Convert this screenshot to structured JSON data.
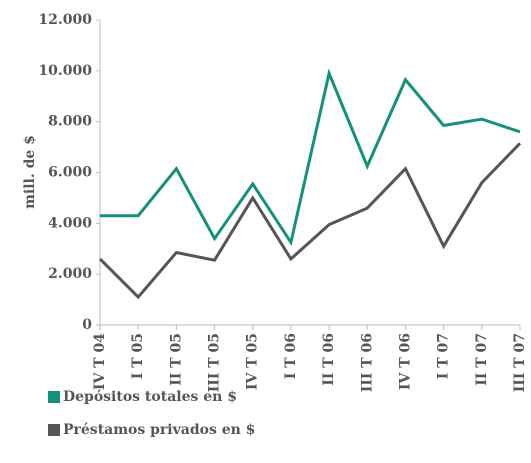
{
  "chart_data": {
    "type": "line",
    "y_label": "mill. de $",
    "categories": [
      "IV T 04",
      "I T 05",
      "II T 05",
      "III T 05",
      "IV T 05",
      "I T 06",
      "II T 06",
      "III T 06",
      "IV T 06",
      "I T 07",
      "II T 07",
      "III T 07"
    ],
    "series": [
      {
        "name": "Depósitos totales en $",
        "color": "#14917d",
        "values": [
          4300,
          4300,
          6150,
          3400,
          5550,
          3250,
          9900,
          6250,
          9650,
          7850,
          8100,
          7600
        ]
      },
      {
        "name": "Préstamos privados en $",
        "color": "#555555",
        "values": [
          2600,
          1100,
          2850,
          2550,
          5000,
          2600,
          3950,
          4600,
          6150,
          3100,
          5600,
          7150
        ]
      }
    ],
    "ylim": [
      0,
      12000
    ],
    "yticks": [
      0,
      {
        "value": 2000,
        "label": "2.000"
      },
      {
        "value": 4000,
        "label": "4.000"
      },
      {
        "value": 6000,
        "label": "6.000"
      },
      {
        "value": 8000,
        "label": "8.000"
      },
      {
        "value": 10000,
        "label": "10.000"
      },
      {
        "value": 12000,
        "label": "12.000"
      }
    ],
    "grid": false,
    "legend": "bottom"
  }
}
